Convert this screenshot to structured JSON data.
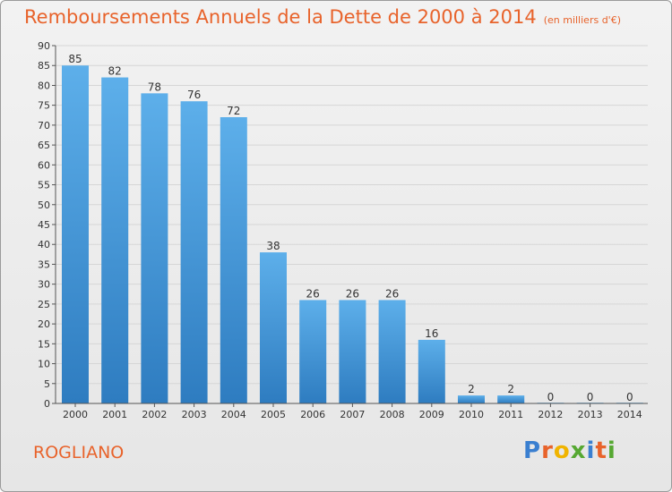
{
  "header": {
    "title": "Remboursements Annuels de la Dette de 2000 à 2014",
    "unit": "(en milliers d'€)"
  },
  "footer": {
    "commune": "ROGLIANO",
    "logo": "Proxiti",
    "logo_colors": [
      "#3a7fd0",
      "#e8632b",
      "#f0b400",
      "#56a832",
      "#3a7fd0",
      "#e8632b",
      "#56a832"
    ]
  },
  "colors": {
    "title": "#e8632b",
    "bar_top": "#5dafea",
    "bar_bottom": "#2e7cc0"
  },
  "chart_data": {
    "type": "bar",
    "title": "Remboursements Annuels de la Dette de 2000 à 2014",
    "subtitle": "(en milliers d'€)",
    "categories": [
      "2000",
      "2001",
      "2002",
      "2003",
      "2004",
      "2005",
      "2006",
      "2007",
      "2008",
      "2009",
      "2010",
      "2011",
      "2012",
      "2013",
      "2014"
    ],
    "values": [
      85,
      82,
      78,
      76,
      72,
      38,
      26,
      26,
      26,
      16,
      2,
      2,
      0,
      0,
      0
    ],
    "ylim": [
      0,
      90
    ],
    "yticks": [
      0,
      5,
      10,
      15,
      20,
      25,
      30,
      35,
      40,
      45,
      50,
      55,
      60,
      65,
      70,
      75,
      80,
      85,
      90
    ],
    "grid": true,
    "xlabel": "",
    "ylabel": ""
  }
}
